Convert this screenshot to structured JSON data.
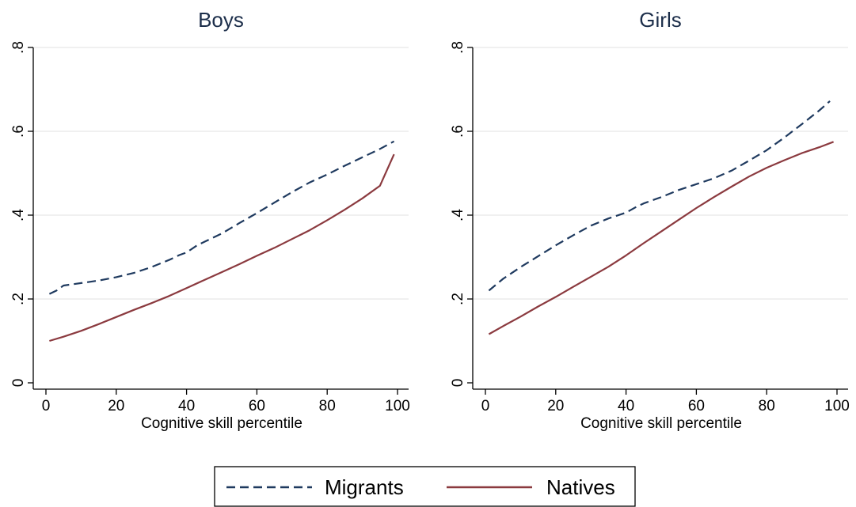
{
  "chart_data": [
    {
      "type": "line",
      "title": "Boys",
      "xlabel": "Cognitive skill percentile",
      "ylabel": "",
      "xlim": [
        0,
        100
      ],
      "ylim": [
        0,
        0.8
      ],
      "xticks": [
        0,
        20,
        40,
        60,
        80,
        100
      ],
      "xtick_labels": [
        "0",
        "20",
        "40",
        "60",
        "80",
        "100"
      ],
      "yticks": [
        0,
        0.2,
        0.4,
        0.6,
        0.8
      ],
      "ytick_labels": [
        "0",
        ".2",
        ".4",
        ".6",
        ".8"
      ],
      "grid": "horizontal",
      "series": [
        {
          "name": "Migrants",
          "color": "#1f3a5f",
          "style": "dashed",
          "x": [
            1,
            3,
            5,
            10,
            15,
            20,
            25,
            30,
            35,
            38,
            40,
            43,
            45,
            50,
            55,
            60,
            65,
            70,
            75,
            80,
            85,
            90,
            95,
            99
          ],
          "y": [
            0.212,
            0.22,
            0.232,
            0.238,
            0.244,
            0.252,
            0.262,
            0.276,
            0.293,
            0.305,
            0.311,
            0.328,
            0.336,
            0.356,
            0.381,
            0.405,
            0.43,
            0.455,
            0.478,
            0.497,
            0.518,
            0.538,
            0.558,
            0.576
          ]
        },
        {
          "name": "Natives",
          "color": "#8b3a3f",
          "style": "solid",
          "x": [
            1,
            5,
            10,
            15,
            20,
            25,
            30,
            35,
            40,
            45,
            50,
            55,
            60,
            65,
            70,
            75,
            80,
            85,
            90,
            95,
            99
          ],
          "y": [
            0.1,
            0.11,
            0.124,
            0.14,
            0.157,
            0.174,
            0.19,
            0.207,
            0.226,
            0.245,
            0.264,
            0.283,
            0.303,
            0.322,
            0.343,
            0.364,
            0.388,
            0.413,
            0.44,
            0.47,
            0.545
          ]
        }
      ]
    },
    {
      "type": "line",
      "title": "Girls",
      "xlabel": "Cognitive skill percentile",
      "ylabel": "",
      "xlim": [
        0,
        100
      ],
      "ylim": [
        0,
        0.8
      ],
      "xticks": [
        0,
        20,
        40,
        60,
        80,
        100
      ],
      "xtick_labels": [
        "0",
        "20",
        "40",
        "60",
        "80",
        "100"
      ],
      "yticks": [
        0,
        0.2,
        0.4,
        0.6,
        0.8
      ],
      "ytick_labels": [
        "0",
        ".2",
        ".4",
        ".6",
        ".8"
      ],
      "grid": "horizontal",
      "series": [
        {
          "name": "Migrants",
          "color": "#1f3a5f",
          "style": "dashed",
          "x": [
            1,
            5,
            10,
            15,
            20,
            25,
            30,
            35,
            40,
            43,
            45,
            50,
            55,
            60,
            65,
            70,
            75,
            80,
            85,
            90,
            95,
            98
          ],
          "y": [
            0.22,
            0.248,
            0.276,
            0.302,
            0.328,
            0.352,
            0.375,
            0.392,
            0.406,
            0.42,
            0.428,
            0.443,
            0.46,
            0.474,
            0.488,
            0.506,
            0.53,
            0.555,
            0.585,
            0.617,
            0.65,
            0.672
          ]
        },
        {
          "name": "Natives",
          "color": "#8b3a3f",
          "style": "solid",
          "x": [
            1,
            5,
            10,
            15,
            20,
            25,
            30,
            35,
            40,
            45,
            50,
            55,
            60,
            65,
            70,
            75,
            80,
            85,
            90,
            95,
            99
          ],
          "y": [
            0.116,
            0.135,
            0.158,
            0.182,
            0.205,
            0.229,
            0.253,
            0.277,
            0.304,
            0.333,
            0.361,
            0.389,
            0.417,
            0.443,
            0.468,
            0.492,
            0.513,
            0.531,
            0.548,
            0.562,
            0.575
          ]
        }
      ]
    }
  ],
  "legend": {
    "placement": "bottom-center",
    "items": [
      {
        "label": "Migrants",
        "color": "#1f3a5f",
        "style": "dashed"
      },
      {
        "label": "Natives",
        "color": "#8b3a3f",
        "style": "solid"
      }
    ]
  }
}
